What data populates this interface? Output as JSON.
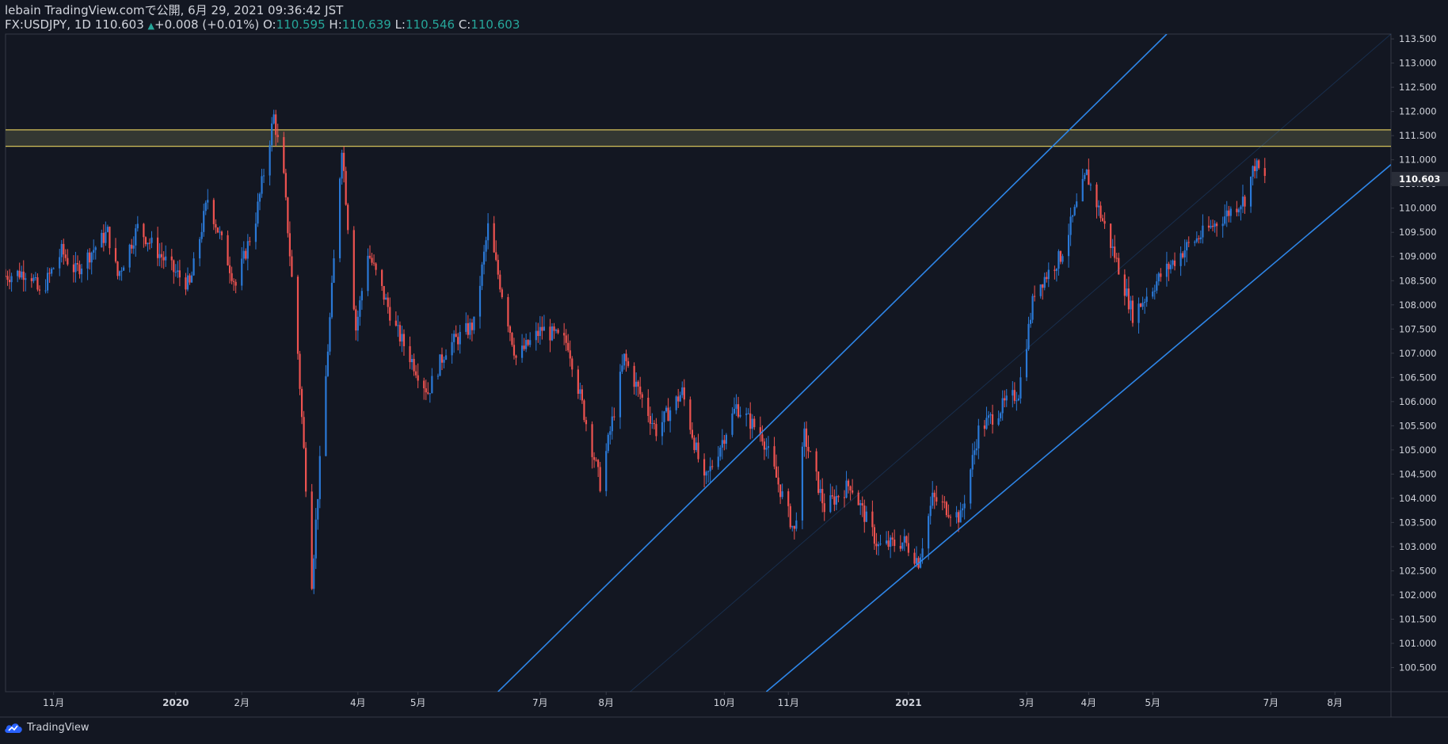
{
  "header": {
    "publisher_line": "lebain TradingView.comで公開, 6月 29, 2021 09:36:42 JST",
    "symbol_line": "FX:USDJPY, 1D",
    "last_price": "110.603",
    "change": "+0.008 (+0.01%)",
    "open_label": "O:",
    "open_value": "110.595",
    "high_label": "H:",
    "high_value": "110.639",
    "low_label": "L:",
    "low_value": "110.546",
    "close_label": "C:",
    "close_value": "110.603"
  },
  "footer": {
    "logo_text": "TradingView",
    "logo_icon": "tradingview-cloud-icon"
  },
  "colors": {
    "background": "#131722",
    "up": "#2a79d7",
    "down": "#ef5350",
    "zone_line": "#d4c15a",
    "zone_fill": "#3a3d35",
    "channel": "#2e86e8",
    "text": "#d1d4dc",
    "ohlc_value": "#26a69a"
  },
  "chart_data": {
    "type": "candlestick",
    "symbol": "FX:USDJPY",
    "timeframe": "1D",
    "y_axis": {
      "range": [
        100.0,
        113.6
      ],
      "ticks": [
        "113.500",
        "113.000",
        "112.500",
        "112.000",
        "111.500",
        "111.000",
        "110.500",
        "110.000",
        "109.500",
        "109.000",
        "108.500",
        "108.000",
        "107.500",
        "107.000",
        "106.500",
        "106.000",
        "105.500",
        "105.000",
        "104.500",
        "104.000",
        "103.500",
        "103.000",
        "102.500",
        "102.000",
        "101.500",
        "101.000",
        "100.500"
      ],
      "price_label": "110.603"
    },
    "x_axis": {
      "range": [
        "2019-10-08",
        "2021-08-30"
      ],
      "ticks": [
        {
          "label": "11月",
          "date": "2019-11-01",
          "bold": false
        },
        {
          "label": "2020",
          "date": "2020-01-01",
          "bold": true
        },
        {
          "label": "2月",
          "date": "2020-02-03",
          "bold": false
        },
        {
          "label": "4月",
          "date": "2020-04-01",
          "bold": false
        },
        {
          "label": "5月",
          "date": "2020-05-01",
          "bold": false
        },
        {
          "label": "7月",
          "date": "2020-07-01",
          "bold": false
        },
        {
          "label": "8月",
          "date": "2020-08-03",
          "bold": false
        },
        {
          "label": "10月",
          "date": "2020-10-01",
          "bold": false
        },
        {
          "label": "11月",
          "date": "2020-11-02",
          "bold": false
        },
        {
          "label": "2021",
          "date": "2021-01-01",
          "bold": true
        },
        {
          "label": "3月",
          "date": "2021-03-01",
          "bold": false
        },
        {
          "label": "4月",
          "date": "2021-04-01",
          "bold": false
        },
        {
          "label": "5月",
          "date": "2021-05-03",
          "bold": false
        },
        {
          "label": "7月",
          "date": "2021-07-01",
          "bold": false
        },
        {
          "label": "8月",
          "date": "2021-08-02",
          "bold": false
        }
      ]
    },
    "resistance_zone": [
      111.28,
      111.62
    ],
    "channel": {
      "upper": {
        "p1": {
          "date": "2020-06-10",
          "price": 100.0
        },
        "p2": {
          "date": "2021-05-10",
          "price": 113.6
        }
      },
      "lower": {
        "p1": {
          "date": "2020-10-22",
          "price": 100.0
        },
        "p2": {
          "date": "2021-08-30",
          "price": 110.9
        }
      },
      "mid": {
        "p1": {
          "date": "2020-08-15",
          "price": 100.0
        },
        "p2": {
          "date": "2021-08-30",
          "price": 113.6
        }
      }
    },
    "price_path": [
      {
        "date": "2019-10-08",
        "price": 108.6
      },
      {
        "date": "2019-10-20",
        "price": 108.7
      },
      {
        "date": "2019-10-25",
        "price": 108.2
      },
      {
        "date": "2019-11-05",
        "price": 109.1
      },
      {
        "date": "2019-11-12",
        "price": 108.7
      },
      {
        "date": "2019-11-28",
        "price": 109.5
      },
      {
        "date": "2019-12-03",
        "price": 108.6
      },
      {
        "date": "2019-12-13",
        "price": 109.6
      },
      {
        "date": "2019-12-31",
        "price": 108.7
      },
      {
        "date": "2020-01-08",
        "price": 108.4
      },
      {
        "date": "2020-01-17",
        "price": 110.2
      },
      {
        "date": "2020-01-31",
        "price": 108.4
      },
      {
        "date": "2020-02-10",
        "price": 109.8
      },
      {
        "date": "2020-02-19",
        "price": 111.9
      },
      {
        "date": "2020-02-24",
        "price": 110.6
      },
      {
        "date": "2020-03-02",
        "price": 107.0
      },
      {
        "date": "2020-03-09",
        "price": 102.3
      },
      {
        "date": "2020-03-16",
        "price": 106.5
      },
      {
        "date": "2020-03-24",
        "price": 111.3
      },
      {
        "date": "2020-03-31",
        "price": 107.5
      },
      {
        "date": "2020-04-06",
        "price": 109.1
      },
      {
        "date": "2020-04-20",
        "price": 107.5
      },
      {
        "date": "2020-05-06",
        "price": 106.2
      },
      {
        "date": "2020-05-15",
        "price": 107.1
      },
      {
        "date": "2020-05-29",
        "price": 107.6
      },
      {
        "date": "2020-06-05",
        "price": 109.6
      },
      {
        "date": "2020-06-19",
        "price": 106.9
      },
      {
        "date": "2020-07-02",
        "price": 107.5
      },
      {
        "date": "2020-07-15",
        "price": 107.2
      },
      {
        "date": "2020-07-31",
        "price": 104.3
      },
      {
        "date": "2020-08-12",
        "price": 106.9
      },
      {
        "date": "2020-08-28",
        "price": 105.4
      },
      {
        "date": "2020-09-10",
        "price": 106.2
      },
      {
        "date": "2020-09-21",
        "price": 104.3
      },
      {
        "date": "2020-10-07",
        "price": 105.9
      },
      {
        "date": "2020-10-20",
        "price": 105.3
      },
      {
        "date": "2020-11-05",
        "price": 103.3
      },
      {
        "date": "2020-11-10",
        "price": 105.3
      },
      {
        "date": "2020-11-20",
        "price": 103.8
      },
      {
        "date": "2020-12-03",
        "price": 104.3
      },
      {
        "date": "2020-12-17",
        "price": 103.0
      },
      {
        "date": "2020-12-30",
        "price": 103.1
      },
      {
        "date": "2021-01-06",
        "price": 102.7
      },
      {
        "date": "2021-01-13",
        "price": 104.0
      },
      {
        "date": "2021-01-27",
        "price": 103.6
      },
      {
        "date": "2021-02-05",
        "price": 105.4
      },
      {
        "date": "2021-02-17",
        "price": 105.9
      },
      {
        "date": "2021-02-25",
        "price": 106.2
      },
      {
        "date": "2021-03-05",
        "price": 108.3
      },
      {
        "date": "2021-03-18",
        "price": 109.0
      },
      {
        "date": "2021-03-31",
        "price": 110.7
      },
      {
        "date": "2021-04-15",
        "price": 108.9
      },
      {
        "date": "2021-04-23",
        "price": 107.8
      },
      {
        "date": "2021-05-07",
        "price": 108.6
      },
      {
        "date": "2021-05-20",
        "price": 109.2
      },
      {
        "date": "2021-06-01",
        "price": 109.6
      },
      {
        "date": "2021-06-18",
        "price": 110.2
      },
      {
        "date": "2021-06-23",
        "price": 110.9
      },
      {
        "date": "2021-06-28",
        "price": 110.6
      }
    ]
  }
}
